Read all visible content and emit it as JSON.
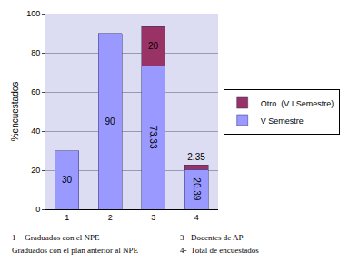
{
  "chart_data": {
    "type": "bar",
    "stacked": true,
    "y_label": "%encuestados",
    "categories": [
      "1",
      "2",
      "3",
      "4"
    ],
    "series": [
      {
        "name": "V Semestre",
        "color": "#9999ff",
        "values": [
          30,
          90,
          73.33,
          20.39
        ]
      },
      {
        "name": "Otro  (V I Semestre)",
        "color": "#993366",
        "values": [
          null,
          null,
          20,
          2.35
        ]
      }
    ],
    "ylim": [
      0,
      100
    ],
    "yticks": [
      0,
      20,
      40,
      60,
      80,
      100
    ],
    "grid": true,
    "legend": "right",
    "data_labels": true,
    "notes": [
      "1-   Graduados con el NPE",
      "Graduados con el plan anterior al NPE",
      "3-  Docentes de AP",
      "4-  Total de encuestados"
    ]
  }
}
